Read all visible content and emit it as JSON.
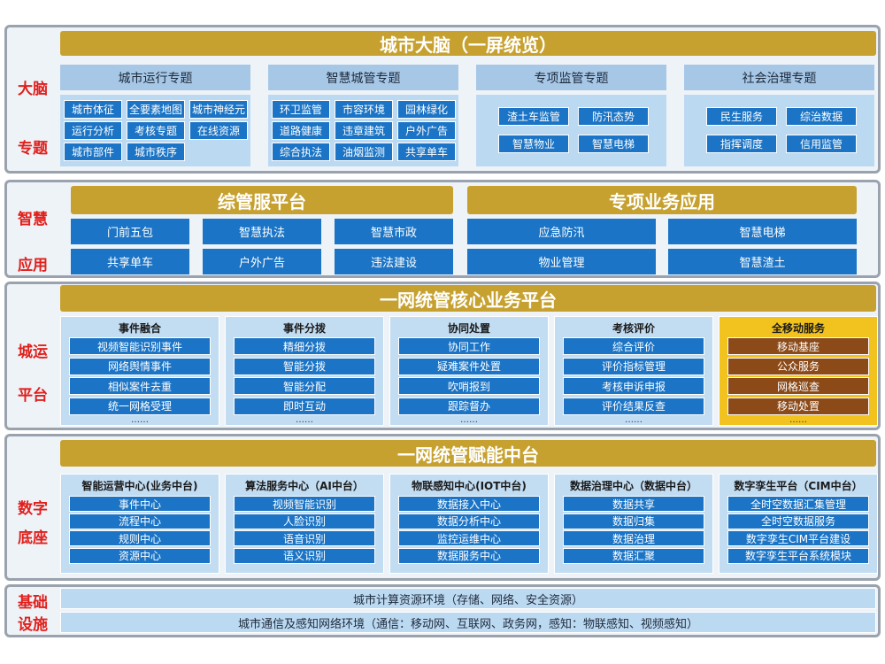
{
  "brain": {
    "label": [
      "大脑",
      "专题"
    ],
    "title": "城市大脑（一屏统览）",
    "groups": [
      {
        "title": "城市运行专题",
        "items": [
          "城市体征",
          "全要素地图",
          "城市神经元",
          "运行分析",
          "考核专题",
          "在线资源",
          "城市部件",
          "城市秩序"
        ]
      },
      {
        "title": "智慧城管专题",
        "items": [
          "环卫监管",
          "市容环境",
          "园林绿化",
          "道路健康",
          "违章建筑",
          "户外广告",
          "综合执法",
          "油烟监测",
          "共享单车"
        ]
      },
      {
        "title": "专项监管专题",
        "items": [
          "渣土车监管",
          "防汛态势",
          "智慧物业",
          "智慧电梯"
        ]
      },
      {
        "title": "社会治理专题",
        "items": [
          "民生服务",
          "综治数据",
          "指挥调度",
          "信用监管"
        ]
      }
    ]
  },
  "apps": {
    "label": [
      "智慧",
      "应用"
    ],
    "panels": [
      {
        "title": "综管服平台",
        "items": [
          "门前五包",
          "智慧执法",
          "智慧市政",
          "共享单车",
          "户外广告",
          "违法建设"
        ]
      },
      {
        "title": "专项业务应用",
        "items": [
          "应急防汛",
          "智慧电梯",
          "物业管理",
          "智慧渣土"
        ]
      }
    ]
  },
  "operations": {
    "label": [
      "城运",
      "平台"
    ],
    "title": "一网统管核心业务平台",
    "columns": [
      {
        "title": "事件融合",
        "items": [
          "视频智能识别事件",
          "网络舆情事件",
          "相似案件去重",
          "统一网格受理"
        ],
        "more": "……"
      },
      {
        "title": "事件分拨",
        "items": [
          "精细分拨",
          "智能分拨",
          "智能分配",
          "即时互动"
        ],
        "more": "……"
      },
      {
        "title": "协同处置",
        "items": [
          "协同工作",
          "疑难案件处置",
          "吹哨报到",
          "跟踪督办"
        ],
        "more": "……"
      },
      {
        "title": "考核评价",
        "items": [
          "综合评价",
          "评价指标管理",
          "考核申诉申报",
          "评价结果反查"
        ],
        "more": "……"
      },
      {
        "title": "全移动服务",
        "items": [
          "移动基座",
          "公众服务",
          "网格巡查",
          "移动处置"
        ],
        "more": "……"
      }
    ]
  },
  "foundation": {
    "label": [
      "数字",
      "底座"
    ],
    "title": "一网统管赋能中台",
    "columns": [
      {
        "title": "智能运营中心(业务中台)",
        "items": [
          "事件中心",
          "流程中心",
          "规则中心",
          "资源中心"
        ]
      },
      {
        "title": "算法服务中心（AI中台）",
        "items": [
          "视频智能识别",
          "人脸识别",
          "语音识别",
          "语义识别"
        ]
      },
      {
        "title": "物联感知中心(IOT中台)",
        "items": [
          "数据接入中心",
          "数据分析中心",
          "监控运维中心",
          "数据服务中心"
        ]
      },
      {
        "title": "数据治理中心（数据中台）",
        "items": [
          "数据共享",
          "数据归集",
          "数据治理",
          "数据汇聚"
        ]
      },
      {
        "title": "数字孪生平台（CIM中台）",
        "items": [
          "全时空数据汇集管理",
          "全时空数据服务",
          "数字孪生CIM平台建设",
          "数字孪生平台系统模块"
        ]
      }
    ]
  },
  "infrastructure": {
    "label": [
      "基础",
      "设施"
    ],
    "rows": [
      "城市计算资源环境（存储、网络、安全资源）",
      "城市通信及感知网络环境（通信：移动网、互联网、政务网，感知：物联感知、视频感知）"
    ]
  }
}
